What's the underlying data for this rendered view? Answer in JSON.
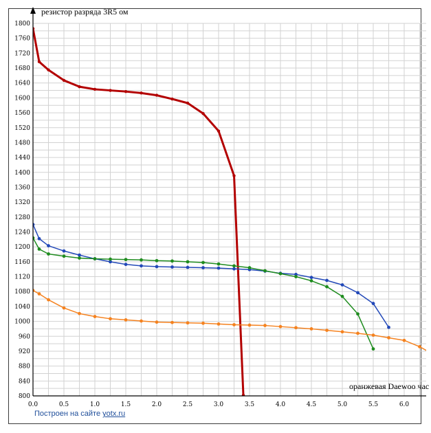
{
  "chart_data": {
    "type": "line",
    "ylabel": "резистор разряда 3R5 ом",
    "xlabel": "оранжевая Daewoo час",
    "xlim": [
      0,
      6.3
    ],
    "ylim": [
      800,
      1800
    ],
    "x_ticks": [
      "0.0",
      "0.5",
      "1.0",
      "1.5",
      "2.0",
      "2.5",
      "3.0",
      "3.5",
      "4.0",
      "4.5",
      "5.0",
      "5.5",
      "6.0"
    ],
    "y_ticks": [
      "800",
      "840",
      "880",
      "920",
      "960",
      "1000",
      "1040",
      "1080",
      "1120",
      "1160",
      "1200",
      "1240",
      "1280",
      "1320",
      "1360",
      "1400",
      "1440",
      "1480",
      "1520",
      "1560",
      "1600",
      "1640",
      "1680",
      "1720",
      "1760",
      "1800"
    ],
    "grid": true,
    "series": [
      {
        "color": "#b30000",
        "width": 3,
        "points": [
          [
            0,
            1786
          ],
          [
            0.1,
            1697
          ],
          [
            0.25,
            1675
          ],
          [
            0.5,
            1647
          ],
          [
            0.75,
            1630
          ],
          [
            1.0,
            1623
          ],
          [
            1.25,
            1620
          ],
          [
            1.5,
            1617
          ],
          [
            1.75,
            1613
          ],
          [
            2.0,
            1607
          ],
          [
            2.25,
            1597
          ],
          [
            2.5,
            1586
          ],
          [
            2.75,
            1558
          ],
          [
            3.0,
            1511
          ],
          [
            3.25,
            1391
          ],
          [
            3.4,
            802
          ]
        ]
      },
      {
        "color": "#2248b8",
        "width": 1.5,
        "points": [
          [
            0,
            1260
          ],
          [
            0.1,
            1222
          ],
          [
            0.25,
            1203
          ],
          [
            0.5,
            1189
          ],
          [
            0.75,
            1178
          ],
          [
            1.0,
            1168
          ],
          [
            1.25,
            1160
          ],
          [
            1.5,
            1153
          ],
          [
            1.75,
            1149
          ],
          [
            2.0,
            1147
          ],
          [
            2.25,
            1146
          ],
          [
            2.5,
            1145
          ],
          [
            2.75,
            1144
          ],
          [
            3.0,
            1143
          ],
          [
            3.25,
            1141
          ],
          [
            3.5,
            1139
          ],
          [
            3.75,
            1135
          ],
          [
            4.0,
            1129
          ],
          [
            4.25,
            1126
          ],
          [
            4.5,
            1118
          ],
          [
            4.75,
            1110
          ],
          [
            5.0,
            1098
          ],
          [
            5.25,
            1077
          ],
          [
            5.5,
            1048
          ],
          [
            5.75,
            984
          ]
        ]
      },
      {
        "color": "#1f8c1f",
        "width": 1.5,
        "points": [
          [
            0,
            1224
          ],
          [
            0.1,
            1194
          ],
          [
            0.25,
            1181
          ],
          [
            0.5,
            1175
          ],
          [
            0.75,
            1170
          ],
          [
            1.0,
            1168
          ],
          [
            1.25,
            1167
          ],
          [
            1.5,
            1166
          ],
          [
            1.75,
            1165
          ],
          [
            2.0,
            1163
          ],
          [
            2.25,
            1162
          ],
          [
            2.5,
            1160
          ],
          [
            2.75,
            1158
          ],
          [
            3.0,
            1154
          ],
          [
            3.25,
            1149
          ],
          [
            3.5,
            1144
          ],
          [
            3.75,
            1136
          ],
          [
            4.0,
            1128
          ],
          [
            4.25,
            1120
          ],
          [
            4.5,
            1109
          ],
          [
            4.75,
            1093
          ],
          [
            5.0,
            1067
          ],
          [
            5.25,
            1020
          ],
          [
            5.5,
            926
          ]
        ]
      },
      {
        "color": "#f5821f",
        "width": 1.5,
        "points": [
          [
            0,
            1083
          ],
          [
            0.1,
            1074
          ],
          [
            0.25,
            1058
          ],
          [
            0.5,
            1036
          ],
          [
            0.75,
            1021
          ],
          [
            1.0,
            1013
          ],
          [
            1.25,
            1007
          ],
          [
            1.5,
            1004
          ],
          [
            1.75,
            1001
          ],
          [
            2.0,
            998
          ],
          [
            2.25,
            997
          ],
          [
            2.5,
            996
          ],
          [
            2.75,
            995
          ],
          [
            3.0,
            993
          ],
          [
            3.25,
            991
          ],
          [
            3.5,
            990
          ],
          [
            3.75,
            989
          ],
          [
            4.0,
            986
          ],
          [
            4.25,
            983
          ],
          [
            4.5,
            980
          ],
          [
            4.75,
            976
          ],
          [
            5.0,
            972
          ],
          [
            5.25,
            968
          ],
          [
            5.5,
            963
          ],
          [
            5.75,
            956
          ],
          [
            6.0,
            949
          ],
          [
            6.25,
            932
          ],
          [
            6.4,
            918
          ]
        ]
      }
    ]
  },
  "credit": {
    "prefix": "Построен на сайте",
    "link": "yotx.ru"
  }
}
